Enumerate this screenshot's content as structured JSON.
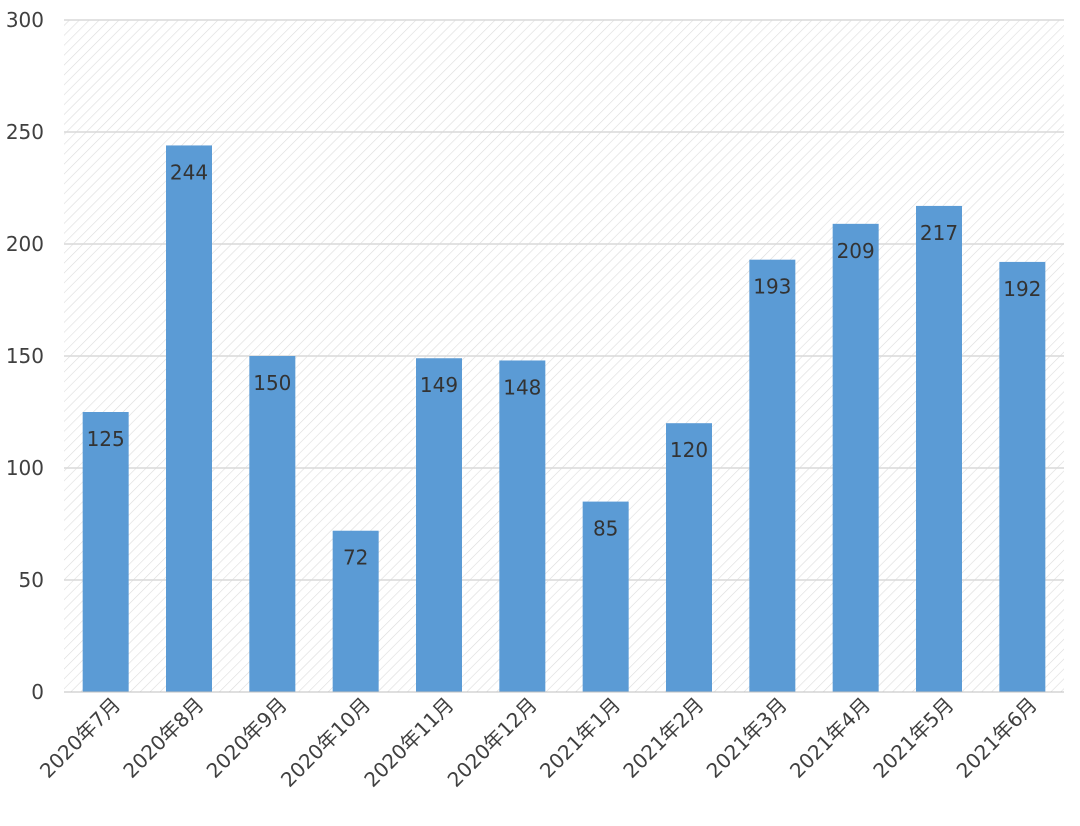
{
  "chart_data": {
    "type": "bar",
    "categories": [
      "2020年7月",
      "2020年8月",
      "2020年9月",
      "2020年10月",
      "2020年11月",
      "2020年12月",
      "2021年1月",
      "2021年2月",
      "2021年3月",
      "2021年4月",
      "2021年5月",
      "2021年6月"
    ],
    "values": [
      125,
      244,
      150,
      72,
      149,
      148,
      85,
      120,
      193,
      209,
      217,
      192
    ],
    "data_labels": [
      "125",
      "244",
      "150",
      "72",
      "149",
      "148",
      "85",
      "120",
      "193",
      "209",
      "217",
      "192"
    ],
    "yticks": [
      0,
      50,
      100,
      150,
      200,
      250,
      300
    ],
    "ytick_labels": [
      "0",
      "50",
      "100",
      "150",
      "200",
      "250",
      "300"
    ],
    "ylim": [
      0,
      300
    ],
    "grid": true,
    "legend": "none",
    "bar_color": "#5B9BD5",
    "grid_color": "#d9d9d9",
    "hatch_color": "#dcdcdc",
    "text_color": "#404040"
  }
}
